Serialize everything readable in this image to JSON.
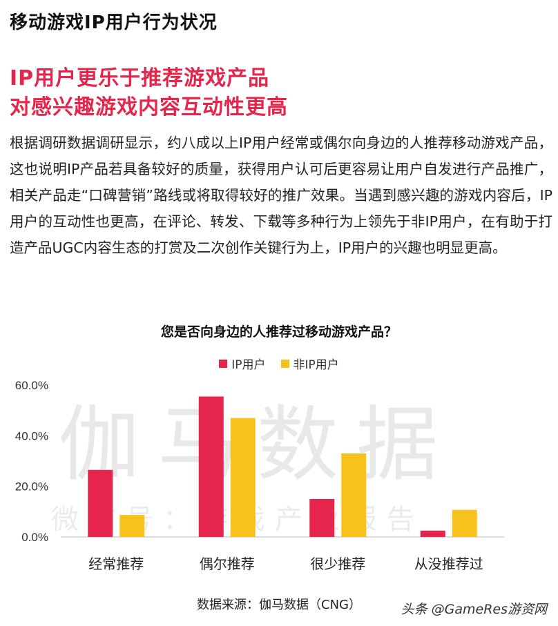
{
  "section_title": "移动游戏IP用户行为状况",
  "headline": {
    "line1": "IP用户更乐于推荐游戏产品",
    "line2": "对感兴趣游戏内容互动性更高"
  },
  "body_text": "根据调研数据调研显示，约八成以上IP用户经常或偶尔向身边的人推荐移动游戏产品，这也说明IP产品若具备较好的质量，获得用户认可后更容易让用户自发进行产品推广，相关产品走“口碑营销”路线或将取得较好的推广效果。当遇到感兴趣的游戏内容后，IP用户的互动性也更高，在评论、转发、下载等多种行为上领先于非IP用户，在有助于打造产品UGC内容生态的打赏及二次创作关键行为上，IP用户的兴趣也明显更高。",
  "watermark": {
    "main": "伽马数据",
    "sub": "微信号：游戏产业报告"
  },
  "source_text": "数据来源：伽马数据（CNG）",
  "credit_text": "头条 @GameRes游资网",
  "colors": {
    "ip": "#e5254b",
    "non_ip": "#f7c21c",
    "headline": "#e5254b"
  },
  "chart_data": {
    "type": "bar",
    "title": "您是否向身边的人推荐过移动游戏产品？",
    "categories": [
      "经常推荐",
      "偶尔推荐",
      "很少推荐",
      "从没推荐过"
    ],
    "series": [
      {
        "name": "IP用户",
        "values": [
          26.5,
          55.5,
          15.0,
          2.5
        ]
      },
      {
        "name": "非IP用户",
        "values": [
          8.7,
          47.0,
          33.0,
          10.7
        ]
      }
    ],
    "ylim": [
      0,
      60
    ],
    "yticks": [
      "0.0%",
      "20.0%",
      "40.0%",
      "60.0%"
    ],
    "xlabel": "",
    "ylabel": "",
    "grid": false,
    "legend_position": "top"
  }
}
